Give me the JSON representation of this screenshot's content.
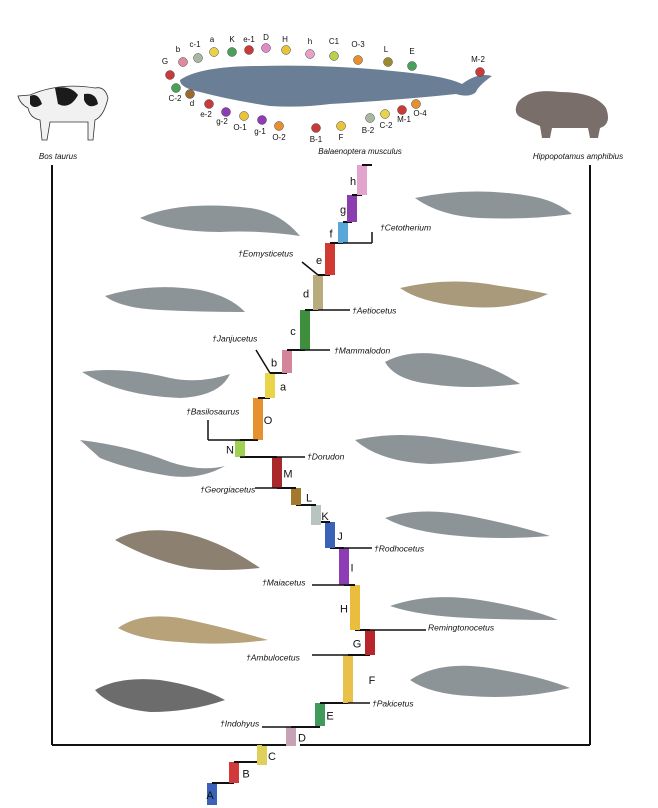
{
  "species": {
    "left": "Bos taurus",
    "center": "Balaenoptera musculus",
    "right": "Hippopotamus amphibius"
  },
  "whale_labels": [
    "G",
    "b",
    "c-1",
    "a",
    "K",
    "e-1",
    "D",
    "H",
    "h",
    "C1",
    "O-3",
    "L",
    "E",
    "M-2",
    "C-2",
    "d",
    "e-2",
    "g-2",
    "O-1",
    "g-1",
    "O-2",
    "B-1",
    "F",
    "B-2",
    "C-2",
    "M-1",
    "O-4"
  ],
  "nodes": [
    {
      "label": "A",
      "color": "#3a62b8"
    },
    {
      "label": "B",
      "color": "#d2393a"
    },
    {
      "label": "C",
      "color": "#e0cf5a"
    },
    {
      "label": "D",
      "color": "#c7a2b4"
    },
    {
      "label": "E",
      "color": "#3f9a5c"
    },
    {
      "label": "F",
      "color": "#e8c04a"
    },
    {
      "label": "G",
      "color": "#b7262c"
    },
    {
      "label": "H",
      "color": "#ebbd3c"
    },
    {
      "label": "I",
      "color": "#8e3cb5"
    },
    {
      "label": "J",
      "color": "#3a63b8"
    },
    {
      "label": "K",
      "color": "#b8c4c0"
    },
    {
      "label": "L",
      "color": "#a37a2c"
    },
    {
      "label": "M",
      "color": "#a8282b"
    },
    {
      "label": "N",
      "color": "#9fd154"
    },
    {
      "label": "O",
      "color": "#e69030"
    },
    {
      "label": "a",
      "color": "#ead54a"
    },
    {
      "label": "b",
      "color": "#d3869a"
    },
    {
      "label": "c",
      "color": "#3d8f3e"
    },
    {
      "label": "d",
      "color": "#b8ac7c"
    },
    {
      "label": "e",
      "color": "#d13a33"
    },
    {
      "label": "f",
      "color": "#59a7d8"
    },
    {
      "label": "g",
      "color": "#8b3cae"
    },
    {
      "label": "h",
      "color": "#e2a3cc"
    }
  ],
  "taxa": [
    "†Cetotherium",
    "†Eomysticetus",
    "†Aetiocetus",
    "†Janjucetus",
    "†Mammalodon",
    "†Basilosaurus",
    "†Dorudon",
    "†Georgiacetus",
    "†Rodhocetus",
    "†Maiacetus",
    "Remingtonocetus",
    "†Ambulocetus",
    "†Pakicetus",
    "†Indohyus"
  ]
}
